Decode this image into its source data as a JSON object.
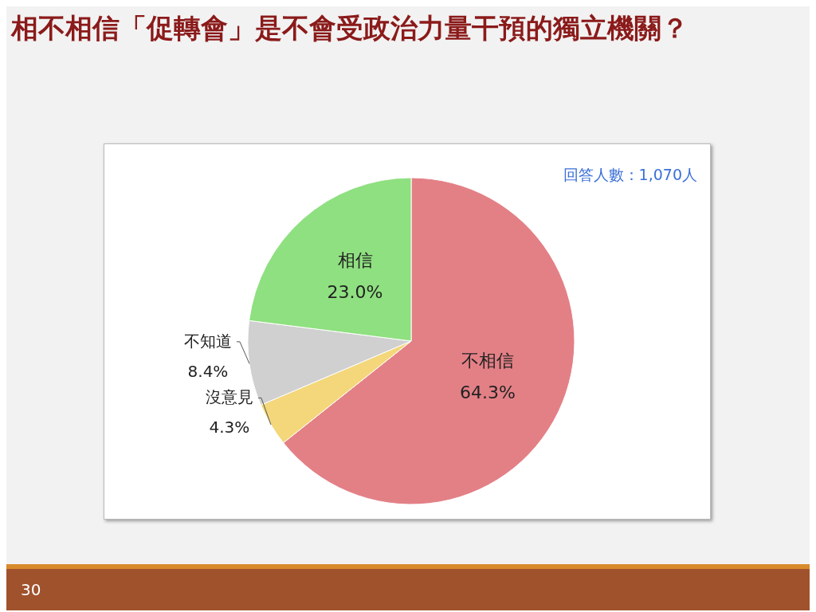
{
  "chart_data": {
    "type": "pie",
    "title": "相不相信「促轉會」是不會受政治力量干預的獨立機關？",
    "categories": [
      "不相信",
      "沒意見",
      "不知道",
      "相信"
    ],
    "values": [
      64.3,
      4.3,
      8.4,
      23.0
    ],
    "colors": [
      "#e38086",
      "#f3d77a",
      "#d0d0d0",
      "#8fe080"
    ],
    "value_labels": [
      "64.3%",
      "4.3%",
      "8.4%",
      "23.0%"
    ],
    "annotations": [
      "回答人數：1,070人",
      "30"
    ]
  }
}
